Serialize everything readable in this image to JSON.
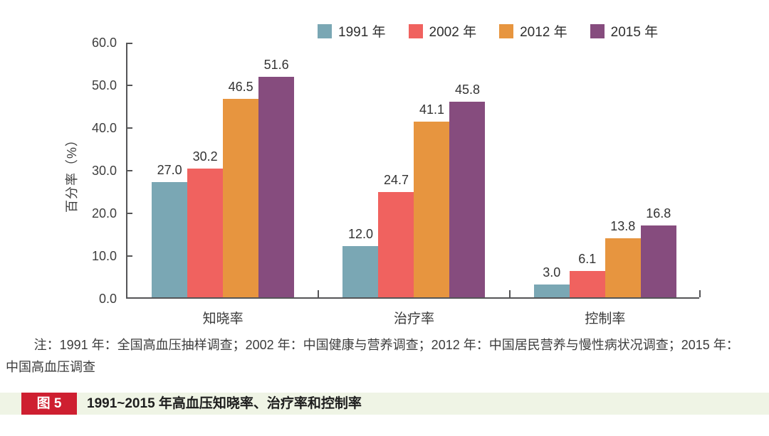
{
  "colors": {
    "series": [
      "#7aa7b4",
      "#f0625f",
      "#e7953f",
      "#864c7e"
    ],
    "axis": "#555557",
    "caption_strip_bg": "#eff4e5",
    "caption_badge_bg": "#ce1f30",
    "caption_badge_text": "#ffffff"
  },
  "chart_data": {
    "type": "bar",
    "title": "",
    "categories": [
      "知晓率",
      "治疗率",
      "控制率"
    ],
    "series": [
      {
        "name": "1991 年",
        "values": [
          27.0,
          12.0,
          3.0
        ]
      },
      {
        "name": "2002 年",
        "values": [
          30.2,
          24.7,
          6.1
        ]
      },
      {
        "name": "2012 年",
        "values": [
          46.5,
          41.1,
          13.8
        ]
      },
      {
        "name": "2015 年",
        "values": [
          51.6,
          45.8,
          16.8
        ]
      }
    ],
    "xlabel": "",
    "ylabel": "百分率（%）",
    "ylim": [
      0,
      60
    ],
    "y_ticks": [
      "60.0",
      "50.0",
      "40.0",
      "30.0",
      "20.0",
      "10.0",
      "0.0"
    ],
    "grid": false,
    "legend_position": "top",
    "value_labels": true
  },
  "note": {
    "text": "注：1991 年：全国高血压抽样调查；2002 年：中国健康与营养调查；2012 年：中国居民营养与慢性病状况调查；2015 年：中国高血压调查"
  },
  "caption": {
    "badge_label": "图 5",
    "title": "1991~2015 年高血压知晓率、治疗率和控制率"
  }
}
